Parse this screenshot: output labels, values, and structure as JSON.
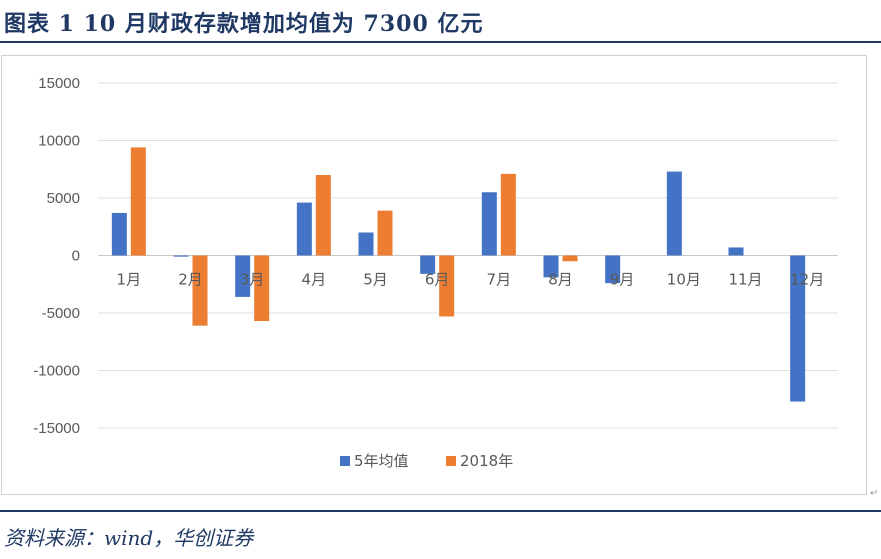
{
  "caption": {
    "title": "图表 1   10 月财政存款增加均值为 7300 亿元"
  },
  "source": {
    "text": "资料来源：wind，华创证券"
  },
  "chart_data": {
    "type": "bar",
    "categories": [
      "1月",
      "2月",
      "3月",
      "4月",
      "5月",
      "6月",
      "7月",
      "8月",
      "9月",
      "10月",
      "11月",
      "12月"
    ],
    "series": [
      {
        "name": "5年均值",
        "color": "#4472c4",
        "values": [
          3700,
          -100,
          -3600,
          4600,
          2000,
          -1600,
          5500,
          -1900,
          -2400,
          7300,
          700,
          -12700
        ]
      },
      {
        "name": "2018年",
        "color": "#ed7d31",
        "values": [
          9400,
          -6100,
          -5700,
          7000,
          3900,
          -5300,
          7100,
          -500,
          null,
          null,
          null,
          null
        ]
      }
    ],
    "yticks": [
      "15000",
      "10000",
      "5000",
      "0",
      "-5000",
      "-10000",
      "-15000"
    ],
    "ylim": [
      -15000,
      15000
    ],
    "grid": true,
    "legend_position": "bottom"
  }
}
